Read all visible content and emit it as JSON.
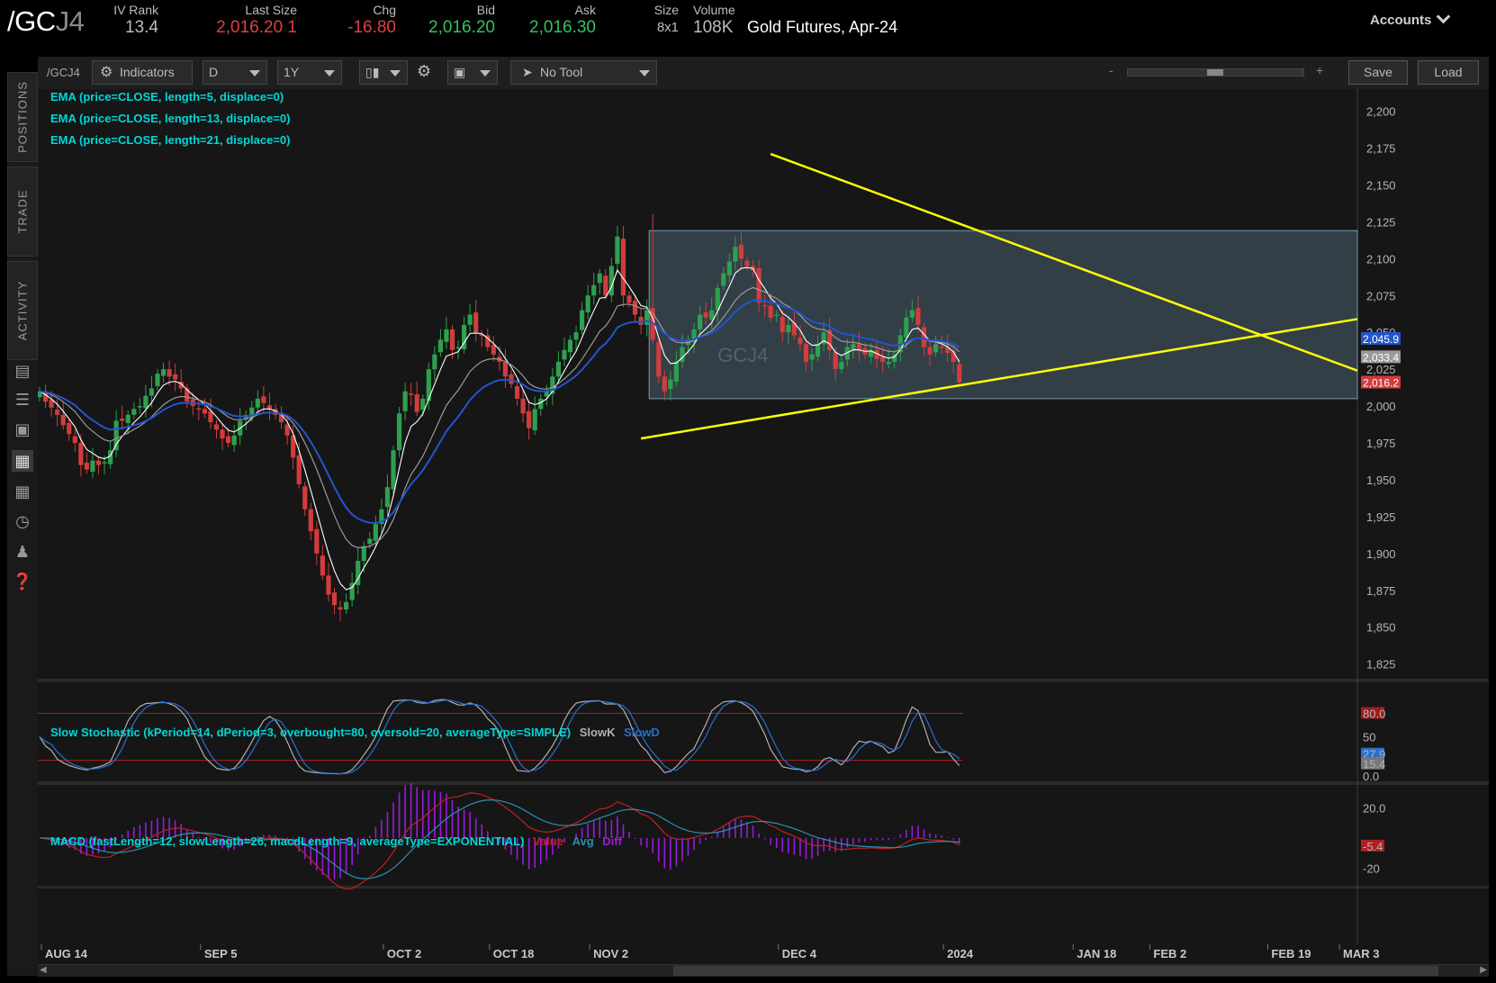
{
  "header": {
    "symbol_main": "/GC",
    "symbol_suffix": "J4",
    "iv_rank_label": "IV Rank",
    "iv_rank": "13.4",
    "last_size_label": "Last Size",
    "last_price": "2,016.20",
    "last_size": "1",
    "chg_label": "Chg",
    "chg": "-16.80",
    "bid_label": "Bid",
    "bid": "2,016.20",
    "ask_label": "Ask",
    "ask": "2,016.30",
    "size_label": "Size",
    "size": "8x1",
    "volume_label": "Volume",
    "volume": "108K",
    "description": "Gold Futures, Apr-24",
    "accounts": "Accounts"
  },
  "left_tabs": [
    "POSITIONS",
    "TRADE",
    "ACTIVITY"
  ],
  "left_icons": [
    "news-icon",
    "list-icon",
    "tv-icon",
    "chart-icon",
    "grid-icon",
    "history-icon",
    "people-icon",
    "help-icon"
  ],
  "toolbar": {
    "symbol": "/GCJ4",
    "indicators": "Indicators",
    "aggregation": "D",
    "time_frame": "1Y",
    "drawing_tool": "No Tool",
    "zoom_minus": "-",
    "zoom_plus": "+",
    "save": "Save",
    "load": "Load"
  },
  "studies": {
    "ema1": "EMA (price=CLOSE, length=5, displace=0)",
    "ema2": "EMA (price=CLOSE, length=13, displace=0)",
    "ema3": "EMA (price=CLOSE, length=21, displace=0)",
    "stoch": "Slow Stochastic (kPeriod=14, dPeriod=3, overbought=80, oversold=20, averageType=SIMPLE)",
    "stoch_k": "SlowK",
    "stoch_d": "SlowD",
    "macd": "MACD (fastLength=12, slowLength=26, macdLength=9, averageType=EXPONENTIAL)",
    "macd_value": "Value",
    "macd_avg": "Avg",
    "macd_diff": "Diff"
  },
  "colors": {
    "up": "#2ea04f",
    "down": "#d23c3c",
    "ema_fast": "#ffffff",
    "ema_mid": "#9a9a9a",
    "ema_slow": "#2255cc",
    "trendline": "#ffff00",
    "range_box": "#5b7a8c",
    "stoch_k": "#b0b0b0",
    "stoch_d": "#2b6fd0",
    "macd_value": "#c02020",
    "macd_avg": "#2a8fb0",
    "macd_diff": "#9b19e0"
  },
  "chart_data": [
    {
      "type": "candlestick",
      "title": "/GCJ4",
      "y_ticks": [
        "2,200",
        "2,175",
        "2,150",
        "2,125",
        "2,100",
        "2,075",
        "2,050",
        "2,025",
        "2,000",
        "1,975",
        "1,950",
        "1,925",
        "1,900",
        "1,875",
        "1,850",
        "1,825"
      ],
      "ylim": [
        1815,
        2215
      ],
      "x_ticks": [
        "AUG 14",
        "SEP 5",
        "OCT 2",
        "OCT 18",
        "NOV 2",
        "DEC 4",
        "2024",
        "JAN 18",
        "FEB 2",
        "FEB 19",
        "MAR 3"
      ],
      "price_tags": [
        {
          "label": "2,045.9",
          "value": 2045.9,
          "color": "#2255cc"
        },
        {
          "label": "2,033.4",
          "value": 2033.4,
          "color": "#9a9a9a"
        },
        {
          "label": "2,016.2",
          "value": 2016.2,
          "color": "#d23c3c"
        }
      ],
      "watermark": "GCJ4",
      "closes": [
        2010,
        2003,
        1999,
        1994,
        1987,
        1981,
        1975,
        1960,
        1957,
        1963,
        1960,
        1962,
        1970,
        1990,
        1990,
        1994,
        1998,
        2000,
        2007,
        2012,
        2022,
        2025,
        2020,
        2018,
        2012,
        2003,
        2000,
        1998,
        1995,
        1989,
        1984,
        1978,
        1975,
        1980,
        1990,
        1994,
        1999,
        2005,
        2002,
        1998,
        1994,
        1989,
        1980,
        1965,
        1947,
        1930,
        1915,
        1900,
        1885,
        1872,
        1865,
        1862,
        1867,
        1880,
        1895,
        1905,
        1910,
        1920,
        1930,
        1945,
        1970,
        1995,
        2010,
        2008,
        1996,
        2005,
        2025,
        2035,
        2045,
        2052,
        2038,
        2040,
        2055,
        2062,
        2050,
        2048,
        2040,
        2035,
        2030,
        2020,
        2015,
        2005,
        1995,
        1985,
        1998,
        2005,
        2010,
        2020,
        2030,
        2038,
        2045,
        2050,
        2065,
        2075,
        2082,
        2090,
        2075,
        2095,
        2115,
        2075,
        2070,
        2062,
        2055,
        2065,
        2045,
        2020,
        2010,
        2018,
        2030,
        2040,
        2045,
        2052,
        2062,
        2060,
        2065,
        2080,
        2090,
        2098,
        2108,
        2100,
        2095,
        2092,
        2070,
        2068,
        2060,
        2062,
        2050,
        2055,
        2048,
        2042,
        2030,
        2035,
        2042,
        2050,
        2038,
        2025,
        2030,
        2040,
        2042,
        2038,
        2035,
        2038,
        2032,
        2030,
        2030,
        2035,
        2048,
        2060,
        2065,
        2055,
        2040,
        2035,
        2042,
        2040,
        2036,
        2030,
        2016
      ],
      "ema_last": {
        "length5": 2033.4,
        "length13": 2033.4,
        "length21": 2045.9
      }
    },
    {
      "type": "line",
      "title": "Slow Stochastic",
      "y_ticks": [
        "80.0",
        "50",
        "27.9",
        "15.4",
        "0.0"
      ],
      "ylim": [
        0,
        100
      ],
      "overbought": 80,
      "oversold": 20,
      "slowk_last": 15.4,
      "slowd_last": 27.9
    },
    {
      "type": "line+bar",
      "title": "MACD",
      "y_ticks": [
        "20.0",
        "-5.4",
        "-20"
      ],
      "ylim": [
        -30,
        25
      ],
      "value_last": -5.4
    }
  ]
}
